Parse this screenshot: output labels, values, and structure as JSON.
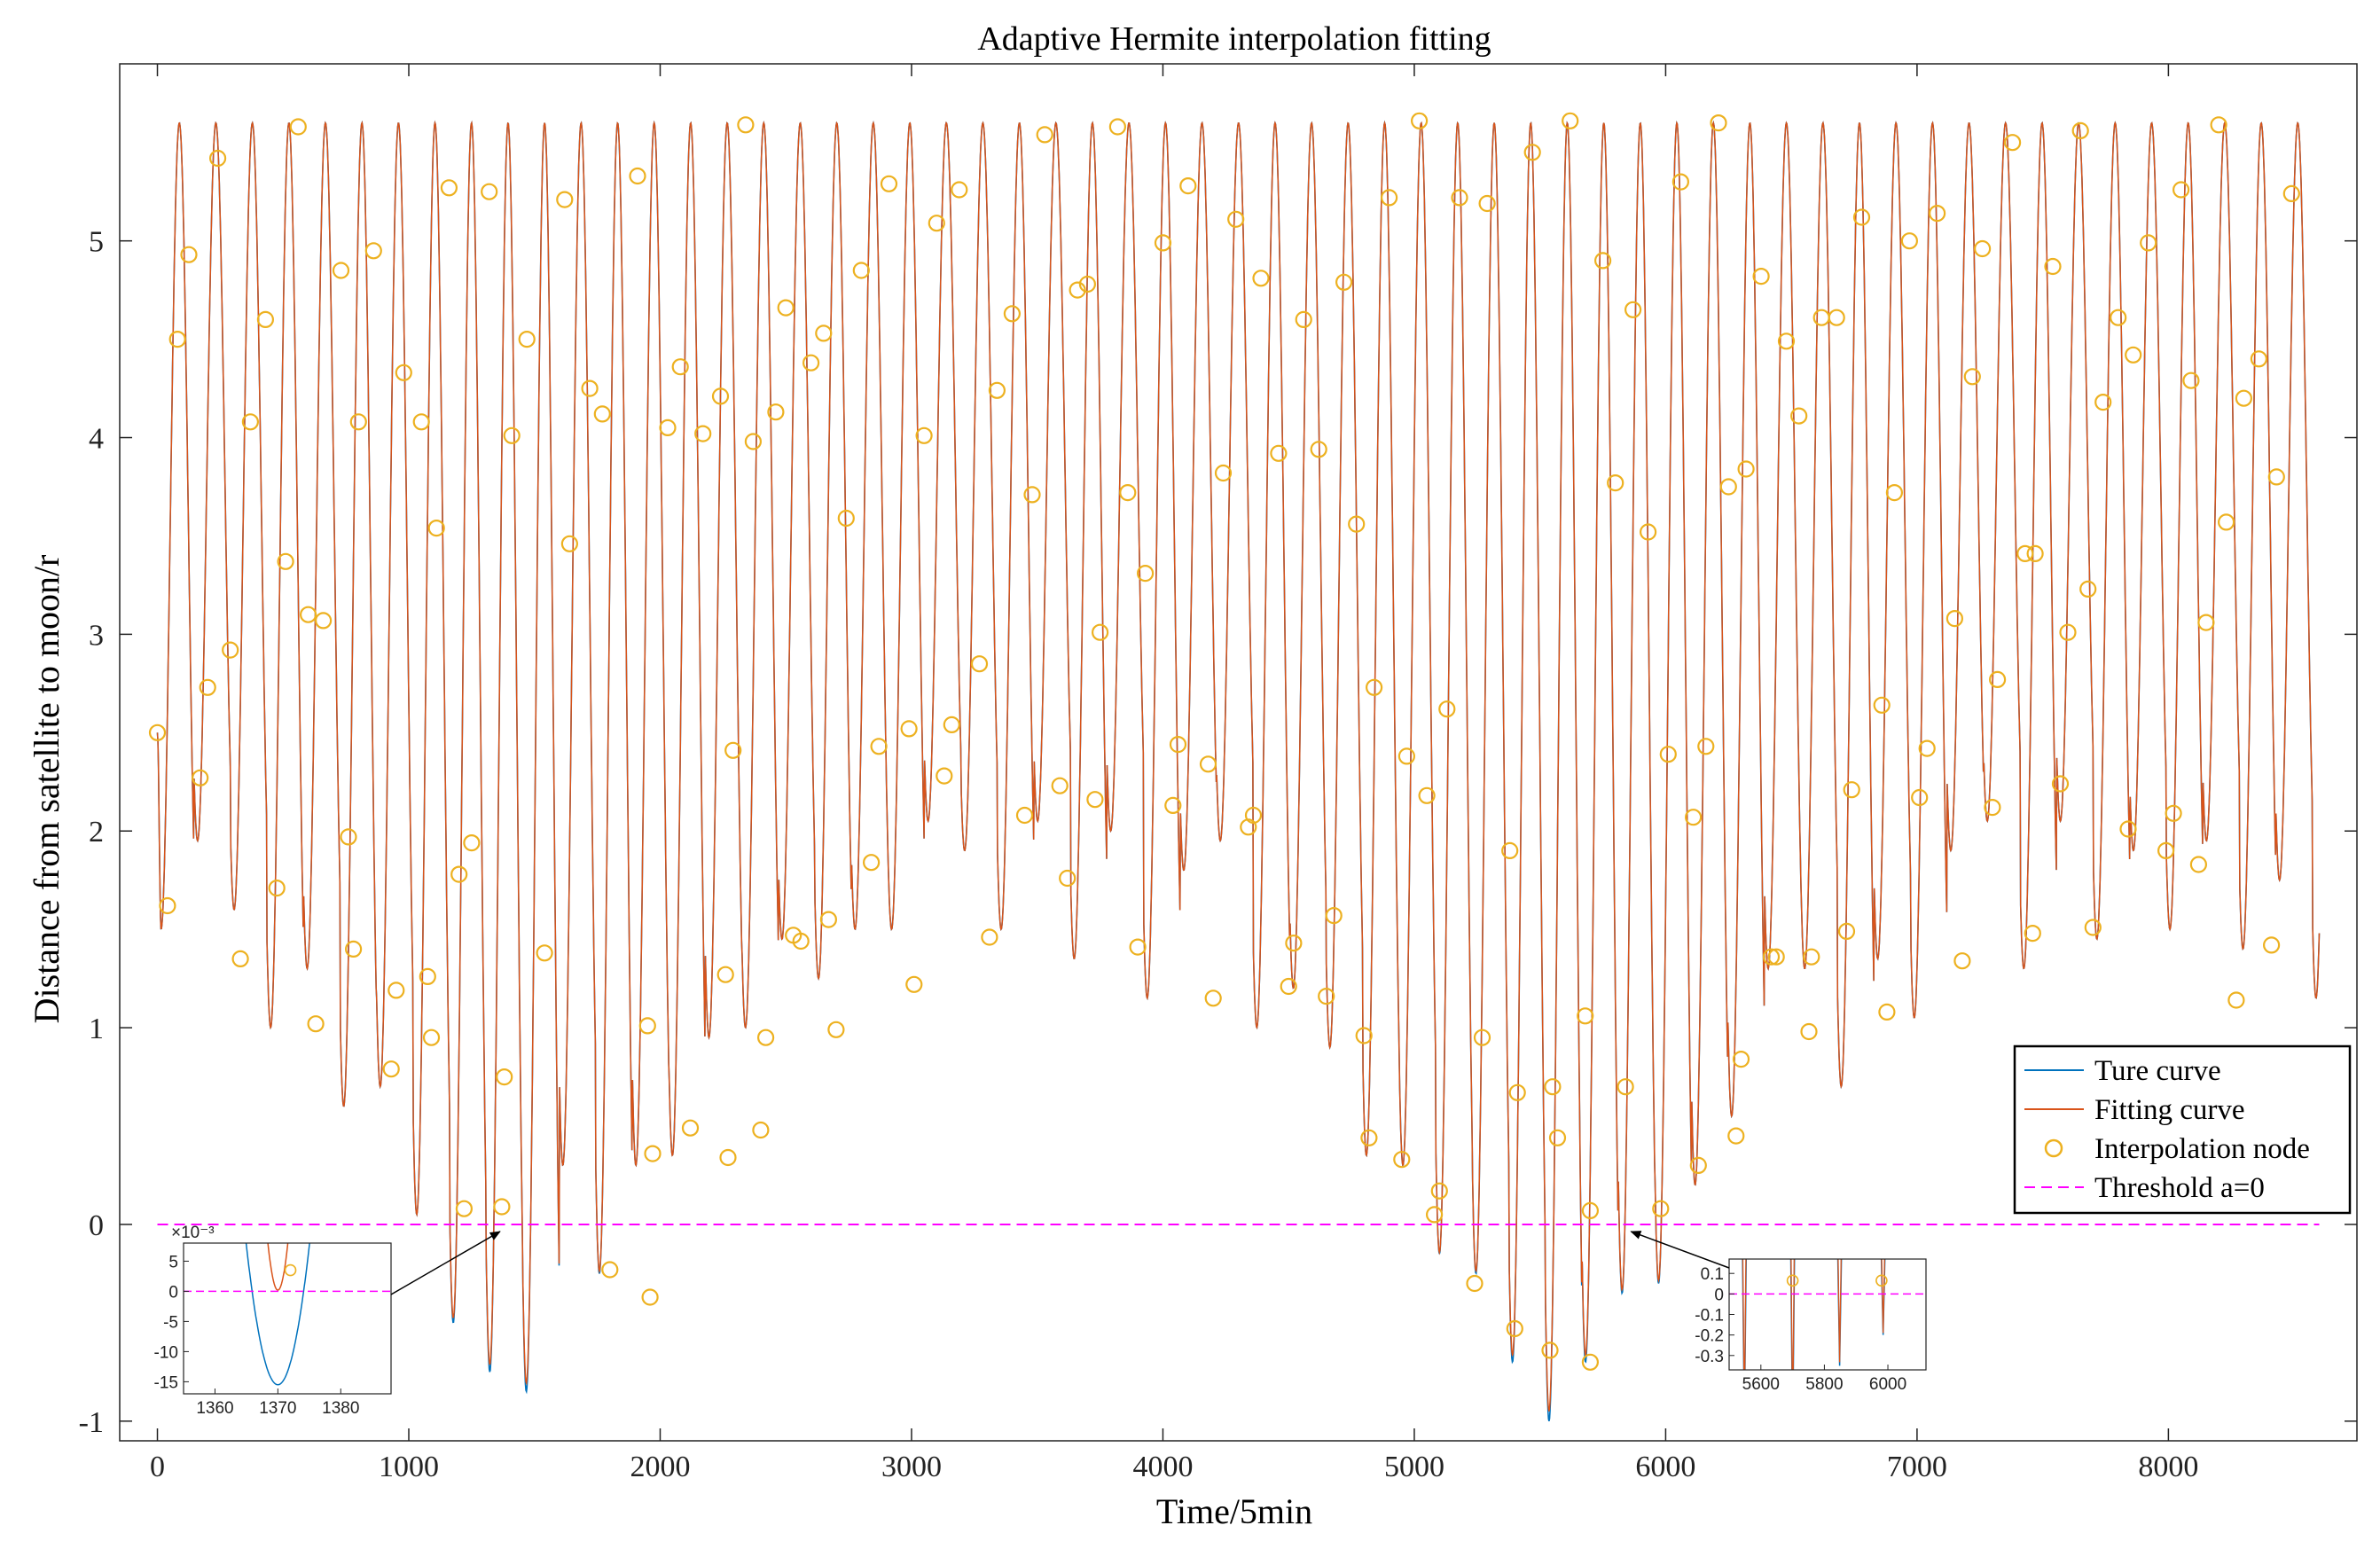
{
  "chart_data": {
    "type": "line",
    "title": "Adaptive Hermite interpolation fitting",
    "xlabel": "Time/5min",
    "ylabel": "Distance from satellite to moon/r",
    "xlim": [
      -150,
      8750
    ],
    "ylim": [
      -1.1,
      5.9
    ],
    "x_ticks": [
      0,
      1000,
      2000,
      3000,
      4000,
      5000,
      6000,
      7000,
      8000
    ],
    "y_ticks": [
      -1,
      0,
      1,
      2,
      3,
      4,
      5
    ],
    "x_tick_labels": [
      "0",
      "1000",
      "2000",
      "3000",
      "4000",
      "5000",
      "6000",
      "7000",
      "8000"
    ],
    "y_tick_labels": [
      "-1",
      "0",
      "1",
      "2",
      "3",
      "4",
      "5"
    ],
    "x_end": 8600,
    "start_value": 2.5,
    "peak_value": 5.6,
    "period": 145.3,
    "minima": [
      1.5,
      1.95,
      1.6,
      1.0,
      1.3,
      0.6,
      0.7,
      0.05,
      -0.5,
      -0.75,
      -0.85,
      0.3,
      -0.25,
      0.3,
      0.35,
      0.95,
      1.0,
      1.45,
      1.25,
      1.5,
      1.5,
      2.05,
      1.9,
      1.5,
      2.05,
      1.35,
      2.0,
      1.15,
      1.8,
      1.95,
      1.0,
      1.2,
      0.9,
      0.35,
      0.3,
      -0.15,
      -0.25,
      -0.7,
      -1.0,
      -0.7,
      -0.35,
      -0.3,
      0.2,
      0.55,
      1.3,
      1.3,
      0.7,
      1.35,
      1.05,
      1.9,
      2.05,
      1.3,
      2.05,
      1.45,
      1.9,
      1.5,
      1.95,
      1.4,
      1.75,
      1.15,
      1.4
    ],
    "series": [
      {
        "name": "Ture curve",
        "color": "#0072BD",
        "style": "solid"
      },
      {
        "name": "Fitting curve",
        "color": "#D95319",
        "style": "solid"
      },
      {
        "name": "Interpolation node",
        "color": "#EDB120",
        "style": "circle"
      },
      {
        "name": "Threshold a=0",
        "color": "#FF00FF",
        "style": "dashed",
        "value": 0
      }
    ],
    "threshold": 0,
    "nodes": [
      [
        0,
        2.5
      ],
      [
        40,
        1.62
      ],
      [
        80,
        4.5
      ],
      [
        125,
        4.93
      ],
      [
        170,
        2.27
      ],
      [
        200,
        2.73
      ],
      [
        240,
        5.42
      ],
      [
        290,
        2.92
      ],
      [
        330,
        1.35
      ],
      [
        370,
        4.08
      ],
      [
        430,
        4.6
      ],
      [
        475,
        1.71
      ],
      [
        510,
        3.37
      ],
      [
        560,
        5.58
      ],
      [
        600,
        3.1
      ],
      [
        630,
        1.02
      ],
      [
        660,
        3.07
      ],
      [
        730,
        4.85
      ],
      [
        760,
        1.97
      ],
      [
        780,
        1.4
      ],
      [
        800,
        4.08
      ],
      [
        860,
        4.95
      ],
      [
        930,
        0.79
      ],
      [
        950,
        1.19
      ],
      [
        980,
        4.33
      ],
      [
        1050,
        4.08
      ],
      [
        1075,
        1.26
      ],
      [
        1090,
        0.95
      ],
      [
        1110,
        3.54
      ],
      [
        1160,
        5.27
      ],
      [
        1200,
        1.78
      ],
      [
        1220,
        0.08
      ],
      [
        1250,
        1.94
      ],
      [
        1320,
        5.25
      ],
      [
        1370,
        0.09
      ],
      [
        1380,
        0.75
      ],
      [
        1410,
        4.01
      ],
      [
        1470,
        4.5
      ],
      [
        1540,
        1.38
      ],
      [
        1620,
        5.21
      ],
      [
        1640,
        3.46
      ],
      [
        1720,
        4.25
      ],
      [
        1770,
        4.12
      ],
      [
        1800,
        -0.23
      ],
      [
        1910,
        5.33
      ],
      [
        1950,
        1.01
      ],
      [
        1960,
        -0.37
      ],
      [
        1970,
        0.36
      ],
      [
        2030,
        4.05
      ],
      [
        2080,
        4.36
      ],
      [
        2120,
        0.49
      ],
      [
        2170,
        4.02
      ],
      [
        2240,
        4.21
      ],
      [
        2260,
        1.27
      ],
      [
        2270,
        0.34
      ],
      [
        2290,
        2.41
      ],
      [
        2340,
        5.59
      ],
      [
        2370,
        3.98
      ],
      [
        2400,
        0.48
      ],
      [
        2420,
        0.95
      ],
      [
        2460,
        4.13
      ],
      [
        2500,
        4.66
      ],
      [
        2530,
        1.47
      ],
      [
        2560,
        1.44
      ],
      [
        2600,
        4.38
      ],
      [
        2650,
        4.53
      ],
      [
        2670,
        1.55
      ],
      [
        2700,
        0.99
      ],
      [
        2740,
        3.59
      ],
      [
        2800,
        4.85
      ],
      [
        2840,
        1.84
      ],
      [
        2870,
        2.43
      ],
      [
        2910,
        5.29
      ],
      [
        2990,
        2.52
      ],
      [
        3010,
        1.22
      ],
      [
        3050,
        4.01
      ],
      [
        3100,
        5.09
      ],
      [
        3130,
        2.28
      ],
      [
        3160,
        2.54
      ],
      [
        3190,
        5.26
      ],
      [
        3270,
        2.85
      ],
      [
        3310,
        1.46
      ],
      [
        3340,
        4.24
      ],
      [
        3400,
        4.63
      ],
      [
        3450,
        2.08
      ],
      [
        3480,
        3.71
      ],
      [
        3530,
        5.54
      ],
      [
        3590,
        2.23
      ],
      [
        3620,
        1.76
      ],
      [
        3660,
        4.75
      ],
      [
        3700,
        4.78
      ],
      [
        3730,
        2.16
      ],
      [
        3750,
        3.01
      ],
      [
        3820,
        5.58
      ],
      [
        3860,
        3.72
      ],
      [
        3900,
        1.41
      ],
      [
        3930,
        3.31
      ],
      [
        4000,
        4.99
      ],
      [
        4040,
        2.13
      ],
      [
        4060,
        2.44
      ],
      [
        4100,
        5.28
      ],
      [
        4180,
        2.34
      ],
      [
        4200,
        1.15
      ],
      [
        4240,
        3.82
      ],
      [
        4290,
        5.11
      ],
      [
        4340,
        2.02
      ],
      [
        4360,
        2.08
      ],
      [
        4390,
        4.81
      ],
      [
        4460,
        3.92
      ],
      [
        4500,
        1.21
      ],
      [
        4520,
        1.43
      ],
      [
        4560,
        4.6
      ],
      [
        4620,
        3.94
      ],
      [
        4650,
        1.16
      ],
      [
        4680,
        1.57
      ],
      [
        4720,
        4.79
      ],
      [
        4770,
        3.56
      ],
      [
        4800,
        0.96
      ],
      [
        4820,
        0.44
      ],
      [
        4840,
        2.73
      ],
      [
        4900,
        5.22
      ],
      [
        4950,
        0.33
      ],
      [
        4970,
        2.38
      ],
      [
        5020,
        5.61
      ],
      [
        5050,
        2.18
      ],
      [
        5080,
        0.05
      ],
      [
        5100,
        0.17
      ],
      [
        5130,
        2.62
      ],
      [
        5180,
        5.22
      ],
      [
        5240,
        -0.3
      ],
      [
        5270,
        0.95
      ],
      [
        5290,
        5.19
      ],
      [
        5380,
        1.9
      ],
      [
        5410,
        0.67
      ],
      [
        5400,
        -0.53
      ],
      [
        5470,
        5.45
      ],
      [
        5540,
        -0.64
      ],
      [
        5550,
        0.7
      ],
      [
        5570,
        0.44
      ],
      [
        5620,
        5.61
      ],
      [
        5680,
        1.06
      ],
      [
        5700,
        -0.7
      ],
      [
        5700,
        0.07
      ],
      [
        5750,
        4.9
      ],
      [
        5800,
        3.77
      ],
      [
        5840,
        0.7
      ],
      [
        5870,
        4.65
      ],
      [
        5930,
        3.52
      ],
      [
        5980,
        0.08
      ],
      [
        6010,
        2.39
      ],
      [
        6060,
        5.3
      ],
      [
        6110,
        2.07
      ],
      [
        6130,
        0.3
      ],
      [
        6160,
        2.43
      ],
      [
        6210,
        5.6
      ],
      [
        6250,
        3.75
      ],
      [
        6280,
        0.45
      ],
      [
        6300,
        0.84
      ],
      [
        6320,
        3.84
      ],
      [
        6380,
        4.82
      ],
      [
        6420,
        1.36
      ],
      [
        6440,
        1.36
      ],
      [
        6480,
        4.49
      ],
      [
        6530,
        4.11
      ],
      [
        6570,
        0.98
      ],
      [
        6580,
        1.36
      ],
      [
        6620,
        4.61
      ],
      [
        6680,
        4.61
      ],
      [
        6720,
        1.49
      ],
      [
        6740,
        2.21
      ],
      [
        6780,
        5.12
      ],
      [
        6860,
        2.64
      ],
      [
        6880,
        1.08
      ],
      [
        6910,
        3.72
      ],
      [
        6970,
        5.0
      ],
      [
        7010,
        2.17
      ],
      [
        7040,
        2.42
      ],
      [
        7080,
        5.14
      ],
      [
        7150,
        3.08
      ],
      [
        7180,
        1.34
      ],
      [
        7220,
        4.31
      ],
      [
        7260,
        4.96
      ],
      [
        7300,
        2.12
      ],
      [
        7320,
        2.77
      ],
      [
        7380,
        5.5
      ],
      [
        7430,
        3.41
      ],
      [
        7460,
        1.48
      ],
      [
        7470,
        3.41
      ],
      [
        7540,
        4.87
      ],
      [
        7570,
        2.24
      ],
      [
        7600,
        3.01
      ],
      [
        7650,
        5.56
      ],
      [
        7680,
        3.23
      ],
      [
        7700,
        1.51
      ],
      [
        7740,
        4.18
      ],
      [
        7800,
        4.61
      ],
      [
        7840,
        2.01
      ],
      [
        7860,
        4.42
      ],
      [
        7920,
        4.99
      ],
      [
        7990,
        1.9
      ],
      [
        8020,
        2.09
      ],
      [
        8050,
        5.26
      ],
      [
        8090,
        4.29
      ],
      [
        8120,
        1.83
      ],
      [
        8150,
        3.06
      ],
      [
        8200,
        5.59
      ],
      [
        8230,
        3.57
      ],
      [
        8270,
        1.14
      ],
      [
        8300,
        4.2
      ],
      [
        8360,
        4.4
      ],
      [
        8410,
        1.42
      ],
      [
        8430,
        3.8
      ],
      [
        8490,
        5.24
      ]
    ],
    "insets": [
      {
        "xlim": [
          1355,
          1388
        ],
        "ylim": [
          -0.017,
          0.008
        ],
        "x_ticks": [
          1360,
          1370,
          1380
        ],
        "y_ticks": [
          5,
          0,
          -5,
          -10,
          -15
        ],
        "y_exponent": "×10⁻³",
        "center": 1370,
        "min": -0.0155,
        "orange_min": 0.0002,
        "node": [
          1372,
          0.0035
        ]
      },
      {
        "xlim": [
          5500,
          6120
        ],
        "ylim": [
          -0.37,
          0.17
        ],
        "x_ticks": [
          5600,
          5800,
          6000
        ],
        "y_ticks": [
          0.1,
          0,
          -0.1,
          -0.2,
          -0.3
        ],
        "nodes": [
          [
            5700,
            0.065
          ],
          [
            5980,
            0.065
          ]
        ]
      }
    ],
    "legend": [
      "Ture curve",
      "Fitting curve",
      "Interpolation node",
      "Threshold a=0"
    ],
    "legend_position": "lower-right",
    "grid": false
  }
}
